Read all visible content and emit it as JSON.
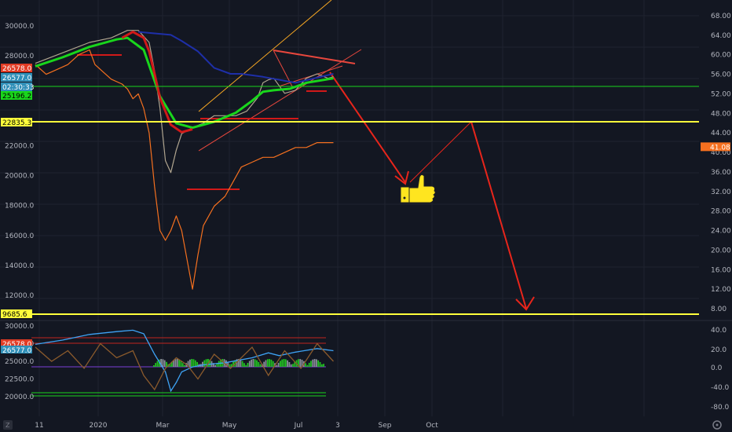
{
  "chart_data": [
    {
      "type": "line",
      "title": "",
      "xlabel": "",
      "ylabel": "",
      "grid": true,
      "x_ticks": [
        "11",
        "2020",
        "Mar",
        "May",
        "Jul",
        "3",
        "Sep",
        "Oct"
      ],
      "left_axis": {
        "ylim": [
          9000,
          31000
        ],
        "ticks": [
          "30000.0",
          "28000.0",
          "22000.0",
          "20000.0",
          "18000.0",
          "16000.0",
          "14000.0",
          "12000.0"
        ]
      },
      "right_axis": {
        "ylim": [
          4,
          72
        ],
        "ticks": [
          "68.00",
          "64.00",
          "60.00",
          "56.00",
          "52.00",
          "48.00",
          "44.00",
          "40.00",
          "36.00",
          "32.00",
          "28.00",
          "24.00",
          "20.00",
          "16.00",
          "12.00",
          "8.00"
        ]
      },
      "price_tags": [
        {
          "text": "26578.0",
          "color": "#e03b24"
        },
        {
          "text": "26577.0",
          "color": "#2f8fb8"
        },
        {
          "text": "02:30:33",
          "color": "#2f8fb8"
        },
        {
          "text": "25196.2",
          "color": "#19d61c"
        },
        {
          "text": "22835.3",
          "color": "#ffff3b"
        },
        {
          "text": "9685.6",
          "color": "#ffff3b"
        }
      ],
      "right_tag": {
        "text": "41.08",
        "color": "#f5701f"
      },
      "horizontal_levels": [
        {
          "label": "25196.2",
          "color": "#19d61c"
        },
        {
          "label": "22835.3",
          "color": "#ffff3b"
        },
        {
          "label": "9685.6",
          "color": "#ffff3b"
        }
      ],
      "series": [
        {
          "color": "#b0a58f",
          "axis": "left",
          "points": [
            [
              0,
              27500
            ],
            [
              5,
              28200
            ],
            [
              10,
              28900
            ],
            [
              14,
              29200
            ],
            [
              17,
              29700
            ],
            [
              19,
              29700
            ],
            [
              21,
              28900
            ],
            [
              22,
              27000
            ],
            [
              23,
              24500
            ],
            [
              24,
              21000
            ],
            [
              25,
              20200
            ],
            [
              26,
              21700
            ],
            [
              27,
              22800
            ],
            [
              29,
              23200
            ],
            [
              31,
              23500
            ],
            [
              33,
              24000
            ],
            [
              35,
              24000
            ],
            [
              37,
              24000
            ],
            [
              39,
              24300
            ],
            [
              41,
              25200
            ],
            [
              42,
              26200
            ],
            [
              43,
              26400
            ],
            [
              44,
              26500
            ],
            [
              46,
              25500
            ],
            [
              48,
              25700
            ],
            [
              50,
              26500
            ],
            [
              52,
              26800
            ],
            [
              54,
              26500
            ],
            [
              55,
              26600
            ]
          ]
        },
        {
          "color": "#f5701f",
          "axis": "right",
          "points": [
            [
              0,
              58
            ],
            [
              2,
              56
            ],
            [
              4,
              57
            ],
            [
              6,
              58
            ],
            [
              8,
              60
            ],
            [
              10,
              61
            ],
            [
              11,
              58
            ],
            [
              12,
              57
            ],
            [
              14,
              55
            ],
            [
              16,
              54
            ],
            [
              17,
              53
            ],
            [
              18,
              51
            ],
            [
              19,
              52
            ],
            [
              20,
              49
            ],
            [
              21,
              44
            ],
            [
              22,
              33
            ],
            [
              23,
              24
            ],
            [
              24,
              22
            ],
            [
              25,
              24
            ],
            [
              26,
              27
            ],
            [
              27,
              24
            ],
            [
              28,
              18
            ],
            [
              29,
              12
            ],
            [
              30,
              19
            ],
            [
              31,
              25
            ],
            [
              33,
              29
            ],
            [
              35,
              31
            ],
            [
              36,
              33
            ],
            [
              38,
              37
            ],
            [
              40,
              38
            ],
            [
              42,
              39
            ],
            [
              44,
              39
            ],
            [
              46,
              40
            ],
            [
              48,
              41
            ],
            [
              50,
              41
            ],
            [
              52,
              42
            ],
            [
              54,
              42
            ],
            [
              55,
              42
            ]
          ]
        },
        {
          "color": "#19d61c",
          "axis": "left",
          "points": [
            [
              0,
              27300
            ],
            [
              5,
              27900
            ],
            [
              10,
              28600
            ],
            [
              15,
              29100
            ],
            [
              17,
              29200
            ],
            [
              20,
              28400
            ],
            [
              23,
              25300
            ],
            [
              26,
              23500
            ],
            [
              29,
              23200
            ],
            [
              33,
              23600
            ],
            [
              37,
              24200
            ],
            [
              40,
              25000
            ],
            [
              42,
              25600
            ],
            [
              44,
              25700
            ],
            [
              47,
              25800
            ],
            [
              50,
              26200
            ],
            [
              55,
              26500
            ]
          ]
        },
        {
          "color": "#d11919",
          "axis": "left",
          "points": [
            [
              16,
              29200
            ],
            [
              18,
              29600
            ],
            [
              20,
              29200
            ],
            [
              21,
              28300
            ],
            [
              22,
              26800
            ],
            [
              23,
              25200
            ],
            [
              25,
              23400
            ],
            [
              27,
              22900
            ],
            [
              29,
              23100
            ]
          ]
        },
        {
          "color": "#1e2fa8",
          "axis": "left",
          "points": [
            [
              19,
              29600
            ],
            [
              25,
              29400
            ],
            [
              27,
              29000
            ],
            [
              30,
              28300
            ],
            [
              33,
              27200
            ],
            [
              36,
              26800
            ],
            [
              38,
              26800
            ],
            [
              42,
              26600
            ],
            [
              48,
              26200
            ],
            [
              55,
              26800
            ]
          ]
        }
      ],
      "lower_panel": {
        "y_ticks_left": [
          "30000.0",
          "27500.0",
          "25000.0",
          "22500.0",
          "20000.0"
        ],
        "y_ticks_right": [
          "40.0",
          "20.0",
          "0.0",
          "-40.0",
          "-80.0"
        ],
        "tags": [
          {
            "text": "26578.0",
            "color": "#e03b24"
          },
          {
            "text": "26577.0",
            "color": "#2f8fb8"
          }
        ],
        "series": [
          {
            "color": "#3ea3f5",
            "points": [
              [
                0,
                27400
              ],
              [
                5,
                28000
              ],
              [
                10,
                28800
              ],
              [
                15,
                29200
              ],
              [
                18,
                29400
              ],
              [
                20,
                28900
              ],
              [
                22,
                26000
              ],
              [
                24,
                23500
              ],
              [
                25,
                20800
              ],
              [
                26,
                22000
              ],
              [
                27,
                23500
              ],
              [
                29,
                24200
              ],
              [
                31,
                24500
              ],
              [
                35,
                24800
              ],
              [
                40,
                25500
              ],
              [
                43,
                26200
              ],
              [
                45,
                25800
              ],
              [
                48,
                26300
              ],
              [
                52,
                26800
              ],
              [
                55,
                26500
              ]
            ]
          },
          {
            "color": "#8a5a2c",
            "points": [
              [
                0,
                27000
              ],
              [
                3,
                25000
              ],
              [
                6,
                26500
              ],
              [
                9,
                24000
              ],
              [
                12,
                27500
              ],
              [
                15,
                25500
              ],
              [
                18,
                26500
              ],
              [
                20,
                23000
              ],
              [
                22,
                21000
              ],
              [
                24,
                24000
              ],
              [
                26,
                25500
              ],
              [
                28,
                24500
              ],
              [
                30,
                22500
              ],
              [
                33,
                26000
              ],
              [
                36,
                24000
              ],
              [
                40,
                27000
              ],
              [
                43,
                23000
              ],
              [
                46,
                26500
              ],
              [
                49,
                24000
              ],
              [
                52,
                27500
              ],
              [
                55,
                25000
              ]
            ]
          }
        ]
      }
    }
  ],
  "sticker": {
    "icon": "thumbs-up-icon",
    "color": "#ffe51f"
  }
}
